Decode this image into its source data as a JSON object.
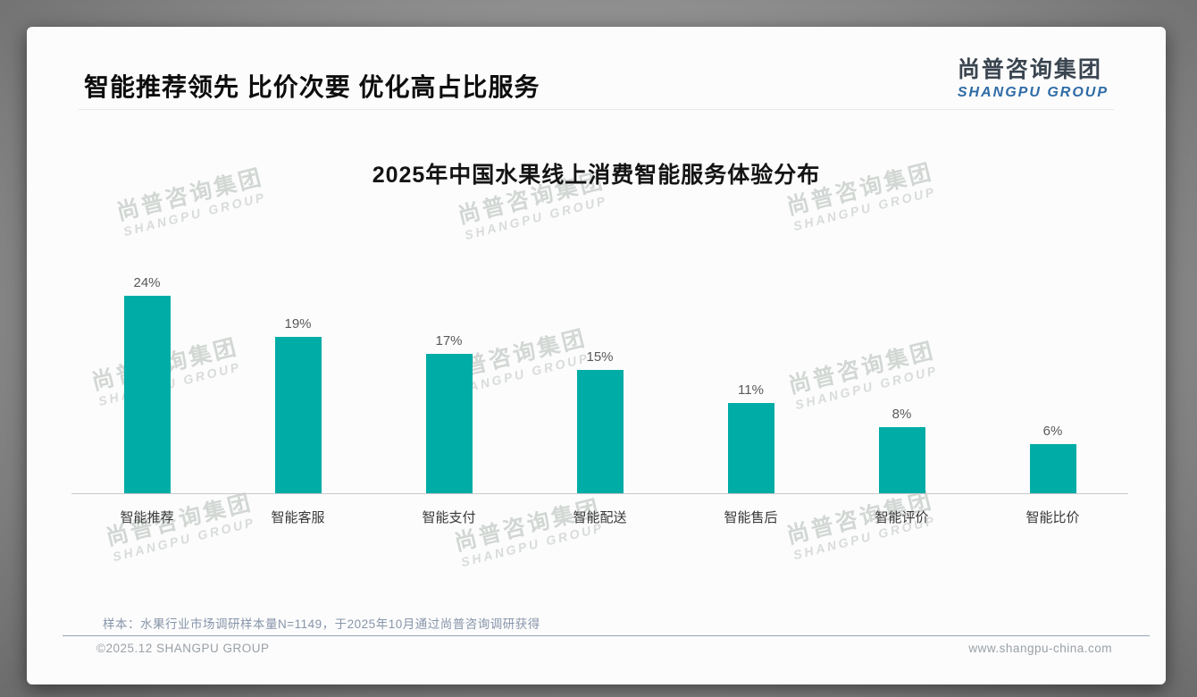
{
  "page": {
    "title": "智能推荐领先 比价次要 优化高占比服务",
    "logo": {
      "cn": "尚普咨询集团",
      "en": "SHANGPU GROUP"
    },
    "watermark": {
      "cn": "尚普咨询集团",
      "en": "SHANGPU GROUP"
    },
    "note": "样本：水果行业市场调研样本量N=1149，于2025年10月通过尚普咨询调研获得",
    "footer_left": "©2025.12 SHANGPU GROUP",
    "footer_right": "www.shangpu-china.com"
  },
  "colors": {
    "bar": "#00ACA6",
    "logo_cn": "#3a4550",
    "logo_en": "#2e6ba6",
    "value_label": "#595959",
    "category_label": "#383838",
    "note_text": "#8795aa",
    "card_background": "#fcfcfc"
  },
  "chart_data": {
    "type": "bar",
    "title": "2025年中国水果线上消费智能服务体验分布",
    "categories": [
      "智能推荐",
      "智能客服",
      "智能支付",
      "智能配送",
      "智能售后",
      "智能评价",
      "智能比价"
    ],
    "values": [
      24,
      19,
      17,
      15,
      11,
      8,
      6
    ],
    "unit": "%",
    "bar_color": "#00ACA6",
    "xlabel": "",
    "ylabel": "",
    "ylim": [
      0,
      26
    ],
    "grid": false,
    "legend": "none",
    "value_labels": true
  }
}
